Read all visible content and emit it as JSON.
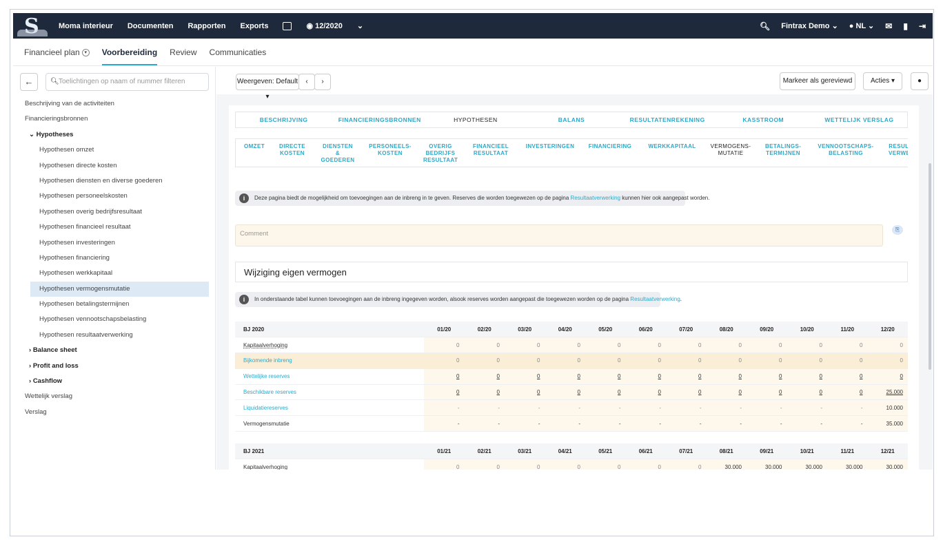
{
  "topbar": {
    "brand": "Moma interieur",
    "nav": [
      "Documenten",
      "Rapporten",
      "Exports"
    ],
    "period": "12/2020",
    "user": "Fintrax Demo",
    "lang": "NL"
  },
  "subnav": {
    "tabs": [
      "Financieel plan",
      "Voorbereiding",
      "Review",
      "Communicaties"
    ],
    "active": "Voorbereiding"
  },
  "sidebar": {
    "search_placeholder": "Toelichtingen op naam of nummer filteren",
    "items": [
      {
        "label": "Beschrijving van de activiteiten",
        "level": 0
      },
      {
        "label": "Financieringsbronnen",
        "level": 0
      },
      {
        "label": "Hypotheses",
        "level": 1,
        "toggle": "v"
      },
      {
        "label": "Hypothesen omzet",
        "level": 2
      },
      {
        "label": "Hypothesen directe kosten",
        "level": 2
      },
      {
        "label": "Hypothesen diensten en diverse goederen",
        "level": 2
      },
      {
        "label": "Hypothesen personeelskosten",
        "level": 2
      },
      {
        "label": "Hypothesen overig bedrijfsresultaat",
        "level": 2
      },
      {
        "label": "Hypothesen financieel resultaat",
        "level": 2
      },
      {
        "label": "Hypothesen investeringen",
        "level": 2
      },
      {
        "label": "Hypothesen financiering",
        "level": 2
      },
      {
        "label": "Hypothesen werkkapitaal",
        "level": 2
      },
      {
        "label": "Hypothesen vermogensmutatie",
        "level": 2,
        "selected": true
      },
      {
        "label": "Hypothesen betalingstermijnen",
        "level": 2
      },
      {
        "label": "Hypothesen vennootschapsbelasting",
        "level": 2
      },
      {
        "label": "Hypothesen resultaatverwerking",
        "level": 2
      },
      {
        "label": "Balance sheet",
        "level": 1,
        "toggle": ">"
      },
      {
        "label": "Profit and loss",
        "level": 1,
        "toggle": ">"
      },
      {
        "label": "Cashflow",
        "level": 1,
        "toggle": ">"
      },
      {
        "label": "Wettelijk verslag",
        "level": 0
      },
      {
        "label": "Verslag",
        "level": 0
      }
    ]
  },
  "toolbar": {
    "view": "Weergeven: Default",
    "mark_reviewed": "Markeer als gereviewd",
    "actions": "Acties"
  },
  "tabs_main": [
    "BESCHRIJVING",
    "FINANCIERINGSBRONNEN",
    "HYPOTHESEN",
    "BALANS",
    "RESULTATENREKENING",
    "KASSTROOM",
    "WETTELIJK VERSLAG"
  ],
  "tabs_main_current": 2,
  "tabs_sub": [
    "OMZET",
    "DIRECTE\nKOSTEN",
    "DIENSTEN\n&\nGOEDEREN",
    "PERSONEELS-\nKOSTEN",
    "OVERIG\nBEDRIJFS\nRESULTAAT",
    "FINANCIEEL\nRESULTAAT",
    "INVESTERINGEN",
    "FINANCIERING",
    "WERKKAPITAAL",
    "VERMOGENS-\nMUTATIE",
    "BETALINGS-\nTERMIJNEN",
    "VENNOOTSCHAPS-\nBELASTING",
    "RESULTA\nVERWERK"
  ],
  "tabs_sub_current": 9,
  "info1": {
    "text": "Deze pagina biedt de mogelijkheid om toevoegingen aan de inbreng in te geven. Reserves die worden toegewezen op de pagina ",
    "link": "Resultaatverwerking",
    "after": " kunnen hier ook aangepast worden."
  },
  "comment_placeholder": "Comment",
  "section_title": "Wijziging eigen vermogen",
  "info2": {
    "text": "In onderstaande tabel kunnen toevoegingen aan de inbreng ingegeven worden, alsook reserves worden aangepast die toegewezen worden op de pagina ",
    "link": "Resultaatverwerking",
    "after": "."
  },
  "table2020": {
    "title": "BJ 2020",
    "months": [
      "01/20",
      "02/20",
      "03/20",
      "04/20",
      "05/20",
      "06/20",
      "07/20",
      "08/20",
      "09/20",
      "10/20",
      "11/20",
      "12/20"
    ],
    "rows": [
      {
        "label": "Kapitaalverhoging",
        "values": [
          "0",
          "0",
          "0",
          "0",
          "0",
          "0",
          "0",
          "0",
          "0",
          "0",
          "0",
          "0"
        ]
      },
      {
        "label": "Bijkomende inbreng",
        "values": [
          "0",
          "0",
          "0",
          "0",
          "0",
          "0",
          "0",
          "0",
          "0",
          "0",
          "0",
          "0"
        ]
      },
      {
        "label": "Wettelijke reserves",
        "values": [
          "0",
          "0",
          "0",
          "0",
          "0",
          "0",
          "0",
          "0",
          "0",
          "0",
          "0",
          "0"
        ]
      },
      {
        "label": "Beschikbare reserves",
        "values": [
          "0",
          "0",
          "0",
          "0",
          "0",
          "0",
          "0",
          "0",
          "0",
          "0",
          "0",
          "25.000"
        ]
      },
      {
        "label": "Liquidatiereserves",
        "values": [
          "-",
          "-",
          "-",
          "-",
          "-",
          "-",
          "-",
          "-",
          "-",
          "-",
          "-",
          "10.000"
        ]
      },
      {
        "label": "Vermogensmutatie",
        "values": [
          "-",
          "-",
          "-",
          "-",
          "-",
          "-",
          "-",
          "-",
          "-",
          "-",
          "-",
          "35.000"
        ]
      }
    ]
  },
  "table2021": {
    "title": "BJ 2021",
    "months": [
      "01/21",
      "02/21",
      "03/21",
      "04/21",
      "05/21",
      "06/21",
      "07/21",
      "08/21",
      "09/21",
      "10/21",
      "11/21",
      "12/21"
    ],
    "rows": [
      {
        "label": "Kapitaalverhoging",
        "values": [
          "0",
          "0",
          "0",
          "0",
          "0",
          "0",
          "0",
          "30.000",
          "30.000",
          "30.000",
          "30.000",
          "30.000"
        ]
      }
    ]
  }
}
